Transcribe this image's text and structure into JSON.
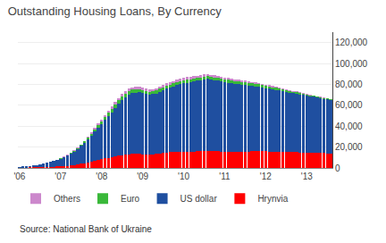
{
  "chart_data": {
    "type": "bar",
    "title": "Outstanding Housing Loans, By Currency",
    "annotations": [
      "Source: National Bank of Ukraine"
    ],
    "stacked": true,
    "grid": true,
    "legend": "lower left",
    "categories": [
      "'06",
      null,
      null,
      null,
      null,
      null,
      null,
      null,
      null,
      null,
      null,
      null,
      "'07",
      null,
      null,
      null,
      null,
      null,
      null,
      null,
      null,
      null,
      null,
      null,
      "'08",
      null,
      null,
      null,
      null,
      null,
      null,
      null,
      null,
      null,
      null,
      null,
      "'09",
      null,
      null,
      null,
      null,
      null,
      null,
      null,
      null,
      null,
      null,
      null,
      "'10",
      null,
      null,
      null,
      null,
      null,
      null,
      null,
      null,
      null,
      null,
      null,
      "'11",
      null,
      null,
      null,
      null,
      null,
      null,
      null,
      null,
      null,
      null,
      null,
      "'12",
      null,
      null,
      null,
      null,
      null,
      null,
      null,
      null,
      null,
      null,
      null,
      "'13",
      null,
      null,
      null,
      null,
      null,
      null,
      null
    ],
    "ylim": [
      0,
      130000
    ],
    "yticks": [
      0,
      {
        "value": 20000,
        "label": "20,000"
      },
      {
        "value": 40000,
        "label": "40,000"
      },
      {
        "value": 60000,
        "label": "60,000"
      },
      {
        "value": 80000,
        "label": "80,000"
      },
      {
        "value": 100000,
        "label": "100,000"
      },
      {
        "value": 120000,
        "label": "120,000"
      }
    ],
    "series": [
      {
        "name": "Hrynvia",
        "color": "#ff0000",
        "values": [
          300,
          350,
          400,
          450,
          500,
          600,
          700,
          800,
          900,
          1000,
          1100,
          1300,
          1500,
          1800,
          2100,
          2500,
          2900,
          3400,
          4000,
          4600,
          5300,
          6000,
          6800,
          7600,
          8300,
          9000,
          9700,
          10300,
          11000,
          11700,
          12300,
          12800,
          13200,
          13500,
          13700,
          13300,
          13000,
          12800,
          12700,
          12900,
          13300,
          13800,
          14300,
          14800,
          15000,
          15200,
          15300,
          15400,
          15500,
          15600,
          15700,
          15800,
          15900,
          16000,
          16100,
          16200,
          16100,
          16000,
          15900,
          15800,
          15700,
          15600,
          15500,
          15400,
          15500,
          15600,
          15700,
          15800,
          15900,
          16000,
          16100,
          16000,
          15900,
          15800,
          15700,
          15600,
          15500,
          15400,
          15300,
          15200,
          15100,
          15000,
          14900,
          14800,
          14700,
          14600,
          14500,
          14400,
          14300,
          14200,
          14100,
          14000
        ]
      },
      {
        "name": "US dollar",
        "color": "#1f4fa0",
        "values": [
          800,
          1000,
          1200,
          1500,
          1800,
          2200,
          2700,
          3300,
          3900,
          4600,
          5400,
          6300,
          7300,
          8400,
          9700,
          11200,
          12900,
          14800,
          17000,
          19500,
          22000,
          25000,
          28000,
          31000,
          34000,
          37000,
          40000,
          43000,
          46500,
          49500,
          52500,
          55000,
          57000,
          58000,
          58500,
          59000,
          58500,
          58000,
          57500,
          57800,
          58000,
          59000,
          60000,
          61000,
          62000,
          63000,
          64000,
          65000,
          65500,
          66000,
          66500,
          67000,
          67500,
          68000,
          68500,
          69000,
          68500,
          68000,
          67500,
          67000,
          66500,
          66000,
          65500,
          65000,
          64500,
          64000,
          63500,
          63000,
          62500,
          62000,
          61500,
          61000,
          60500,
          60000,
          59500,
          59000,
          58500,
          58000,
          57500,
          57000,
          56500,
          56000,
          55500,
          55000,
          54500,
          54000,
          53500,
          53000,
          52500,
          52000,
          51500,
          51000
        ]
      },
      {
        "name": "Euro",
        "color": "#3ab83a",
        "values": [
          50,
          60,
          70,
          80,
          90,
          110,
          130,
          160,
          190,
          220,
          260,
          310,
          370,
          440,
          510,
          600,
          710,
          850,
          1000,
          1200,
          1450,
          1700,
          2000,
          2300,
          2600,
          2800,
          3000,
          3200,
          3300,
          3400,
          3500,
          3500,
          3500,
          3400,
          3300,
          3200,
          3100,
          3000,
          2900,
          2900,
          2900,
          2900,
          2900,
          2900,
          2900,
          2900,
          2900,
          2900,
          2900,
          2900,
          2900,
          2800,
          2800,
          2800,
          2700,
          2700,
          2700,
          2700,
          2700,
          2700,
          2700,
          2700,
          2700,
          2700,
          2700,
          2700,
          2700,
          2700,
          2600,
          2600,
          2500,
          2400,
          2300,
          2200,
          2100,
          2000,
          1900,
          1800,
          1700,
          1600,
          1500,
          1400,
          1300,
          1200,
          1100,
          1000,
          950,
          900,
          850,
          800,
          750,
          700
        ]
      },
      {
        "name": "Others",
        "color": "#cc88cc",
        "values": [
          30,
          40,
          45,
          50,
          60,
          70,
          80,
          100,
          120,
          140,
          170,
          200,
          240,
          280,
          330,
          390,
          460,
          550,
          650,
          780,
          930,
          1100,
          1300,
          1500,
          1700,
          1900,
          2000,
          2100,
          2200,
          2300,
          2350,
          2400,
          2350,
          2300,
          2250,
          2200,
          2100,
          2050,
          2000,
          2000,
          2000,
          2050,
          2100,
          2150,
          2200,
          2250,
          2300,
          2350,
          2350,
          2350,
          2300,
          2300,
          2250,
          2200,
          2150,
          2100,
          2050,
          2000,
          1950,
          1900,
          1850,
          1800,
          1750,
          1700,
          1650,
          1600,
          1550,
          1500,
          1450,
          1400,
          1350,
          1300,
          1250,
          1200,
          1150,
          1100,
          1050,
          1000,
          950,
          900,
          850,
          800,
          750,
          700,
          650,
          600,
          570,
          540,
          510,
          480,
          450,
          420
        ]
      }
    ]
  }
}
